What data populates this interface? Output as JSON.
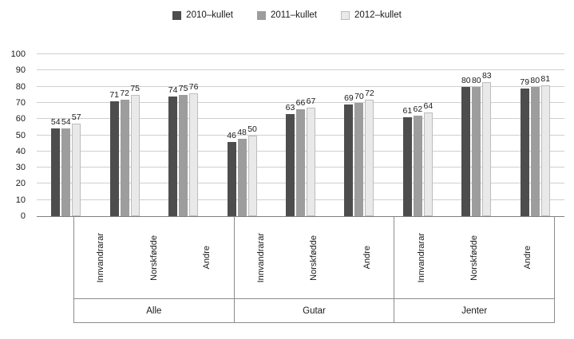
{
  "chart_data": {
    "type": "bar",
    "title": "",
    "xlabel": "",
    "ylabel": "",
    "ylim": [
      0,
      100
    ],
    "ytick_step": 10,
    "grid": true,
    "legend_position": "top-center",
    "groups": [
      "Alle",
      "Gutar",
      "Jenter"
    ],
    "categories": [
      "Innvandrarar",
      "Norskfødde",
      "Andre"
    ],
    "series": [
      {
        "name": "2010–kullet",
        "color": "#4d4d4d",
        "border": "#4d4d4d",
        "values": [
          54,
          71,
          74,
          46,
          63,
          69,
          61,
          80,
          79
        ]
      },
      {
        "name": "2011–kullet",
        "color": "#9d9d9d",
        "border": "#9d9d9d",
        "values": [
          54,
          72,
          75,
          48,
          66,
          70,
          62,
          80,
          80
        ]
      },
      {
        "name": "2012–kullet",
        "color": "#e9e9e9",
        "border": "#bdbdbd",
        "values": [
          57,
          75,
          76,
          50,
          67,
          72,
          64,
          83,
          81
        ]
      }
    ],
    "colors": {
      "gridline": "#cfcfcf",
      "axis_line": "#808080",
      "frame_line": "#8c8c8c",
      "text": "#1a1a1a",
      "background": "#ffffff"
    }
  }
}
